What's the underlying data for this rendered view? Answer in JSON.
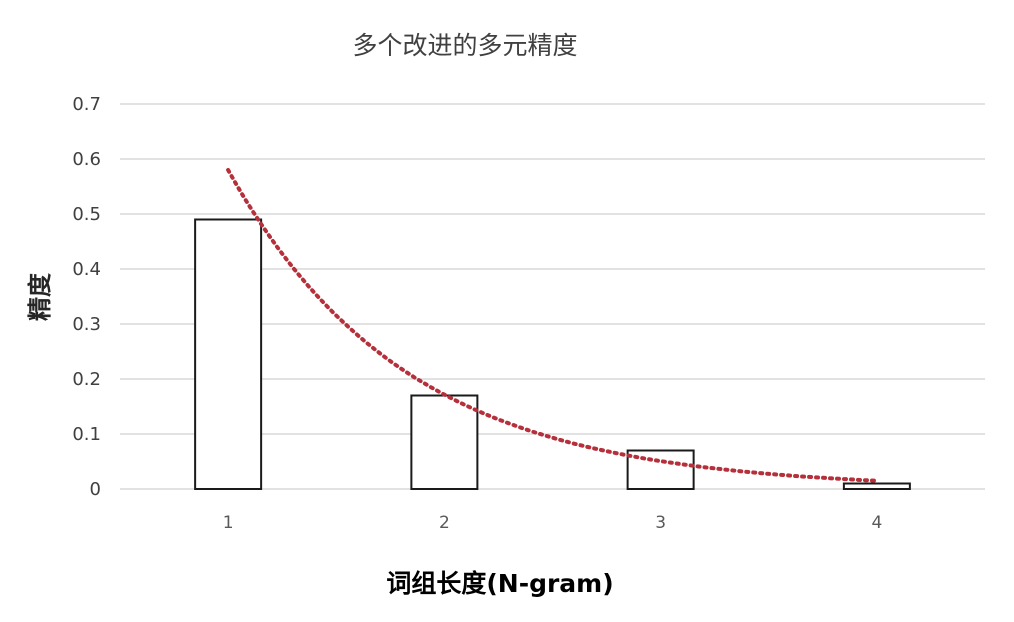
{
  "chart_data": {
    "type": "bar",
    "title": "多个改进的多元精度",
    "xlabel": "词组长度(N-gram)",
    "ylabel": "精度",
    "categories": [
      "1",
      "2",
      "3",
      "4"
    ],
    "series": [
      {
        "values": [
          0.49,
          0.17,
          0.07,
          0.01
        ]
      }
    ],
    "trendline": {
      "type": "exponential",
      "start": {
        "x": 1,
        "y": 0.58
      },
      "end": {
        "x": 4,
        "y": 0.015
      },
      "color": "#b5303a"
    },
    "ylim": [
      0,
      0.7
    ],
    "yticks": [
      "0",
      "0.1",
      "0.2",
      "0.3",
      "0.4",
      "0.5",
      "0.6",
      "0.7"
    ],
    "grid": true,
    "legend": "none"
  }
}
